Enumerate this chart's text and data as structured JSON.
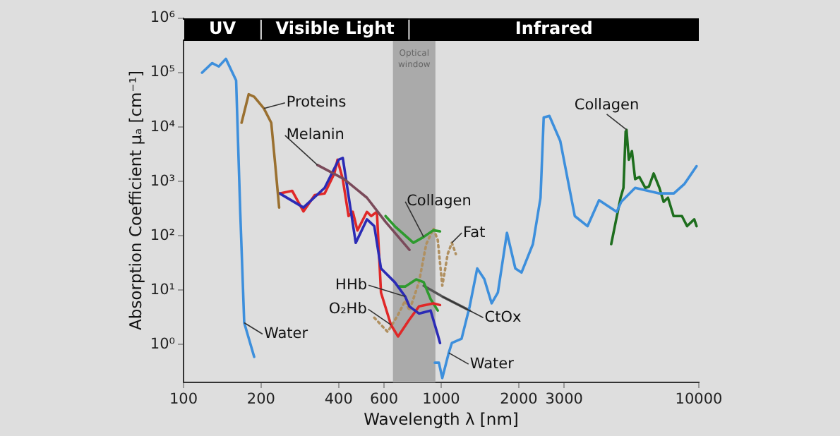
{
  "chart_data": {
    "type": "line",
    "xlabel": "Wavelength λ [nm]",
    "ylabel": "Absorption Coefficient μₐ [cm⁻¹]",
    "log": "xy",
    "xlim": [
      100,
      10000
    ],
    "xticks": [
      100,
      200,
      400,
      600,
      1000,
      2000,
      3000,
      10000
    ],
    "ylim": [
      0.2,
      1000000
    ],
    "yticks": [
      {
        "value": 1,
        "label": "10⁰"
      },
      {
        "value": 10,
        "label": "10¹"
      },
      {
        "value": 100,
        "label": "10²"
      },
      {
        "value": 1000,
        "label": "10³"
      },
      {
        "value": 10000,
        "label": "10⁴"
      },
      {
        "value": 100000,
        "label": "10⁵"
      },
      {
        "value": 1000000,
        "label": "10⁶"
      }
    ],
    "grid": false,
    "legend": false,
    "marker": "none",
    "series": [
      {
        "color": "#3d8fdc",
        "x": [
          118,
          129,
          137,
          146,
          160,
          166,
          172,
          188,
          205,
          600,
          933,
          945,
          980,
          1010,
          1070,
          1100,
          1200,
          1290,
          1380,
          1470,
          1570,
          1660,
          1800,
          1940,
          2050,
          2270,
          2430,
          2500,
          2630,
          2900,
          3300,
          3700,
          4100,
          4800,
          5000,
          5660,
          7030,
          8000,
          8800,
          9800
        ],
        "values": [
          100000,
          150000,
          130000,
          180000,
          72000,
          275,
          2.5,
          0.59,
          null,
          null,
          null,
          0.46,
          0.46,
          0.24,
          0.7,
          1.06,
          1.27,
          5,
          25,
          16,
          5.7,
          9,
          113,
          25,
          21,
          70,
          500,
          15000,
          16000,
          5500,
          230,
          150,
          450,
          275,
          420,
          760,
          600,
          600,
          900,
          1900
        ]
      },
      {
        "color": "#9a7030",
        "x": [
          168,
          179,
          188,
          205,
          219,
          227,
          235
        ],
        "values": [
          12000,
          40000,
          36000,
          22000,
          12000,
          2000,
          330
        ]
      },
      {
        "color": "#7a4a5a",
        "x": [
          331,
          420,
          515,
          608,
          753
        ],
        "values": [
          2000,
          1100,
          500,
          180,
          55
        ]
      },
      {
        "color": "#2b2bb5",
        "x": [
          236,
          292,
          353,
          400,
          415,
          466,
          515,
          550,
          584,
          660,
          725,
          753,
          820,
          910,
          970,
          990
        ],
        "values": [
          600,
          330,
          760,
          2500,
          2700,
          74,
          200,
          150,
          25,
          14,
          7.6,
          5,
          3.7,
          4.2,
          1.5,
          1.06
        ]
      },
      {
        "color": "#e02828",
        "x": [
          236,
          264,
          292,
          323,
          353,
          385,
          396,
          415,
          437,
          454,
          473,
          515,
          535,
          563,
          584,
          638,
          680,
          750,
          820,
          933,
          990
        ],
        "values": [
          600,
          670,
          280,
          560,
          600,
          1400,
          2500,
          1100,
          230,
          275,
          125,
          275,
          230,
          275,
          9,
          2.3,
          1.4,
          2.8,
          5,
          5.7,
          5.3
        ]
      },
      {
        "color": "#2e9a2e",
        "x": [
          608,
          660,
          780,
          855,
          933,
          990
        ],
        "values": [
          230,
          150,
          74,
          95,
          126,
          120
        ]
      },
      {
        "color": "#2e9a2e",
        "x": [
          680,
          725,
          800,
          855,
          910,
          970
        ],
        "values": [
          11.6,
          11.6,
          15.7,
          14,
          6.8,
          4.2
        ]
      },
      {
        "color": "#b09060",
        "line_style": "dotted",
        "x": [
          550,
          620,
          680,
          725,
          753,
          820,
          875,
          933,
          970,
          1010,
          1060,
          1100,
          1140
        ],
        "values": [
          3.1,
          1.7,
          3.5,
          6.4,
          4.2,
          14,
          70,
          135,
          83,
          12,
          46,
          74,
          46
        ]
      },
      {
        "color": "#555555",
        "x": [
          855,
          1010,
          1290
        ],
        "values": [
          12,
          7.6,
          4.2
        ]
      },
      {
        "color": "#1e6e1e",
        "x": [
          4570,
          4970,
          5100,
          5200,
          5240,
          5350,
          5500,
          5660,
          5880,
          6200,
          6400,
          6680,
          7030,
          7300,
          7590,
          7980,
          8600,
          9000,
          9600,
          9800
        ],
        "values": [
          70,
          500,
          760,
          8300,
          8900,
          2500,
          3600,
          1100,
          1200,
          760,
          800,
          1400,
          760,
          420,
          500,
          230,
          230,
          150,
          200,
          150
        ]
      }
    ],
    "bands": [
      {
        "axis": "x",
        "from": 100,
        "to": 200,
        "label": "UV",
        "color": "#000000"
      },
      {
        "axis": "x",
        "from": 200,
        "to": 750,
        "label": "Visible Light",
        "color": "#000000"
      },
      {
        "axis": "x",
        "from": 750,
        "to": 10000,
        "label": "Infrared",
        "color": "#000000"
      },
      {
        "axis": "x",
        "from": 650,
        "to": 950,
        "label": "Optical window",
        "color": "#aaaaaa"
      }
    ],
    "annotations": [
      {
        "text": "Proteins",
        "x": 205,
        "y": 22000
      },
      {
        "text": "Melanin",
        "x": 331,
        "y": 2000
      },
      {
        "text": "Collagen",
        "x": 855,
        "y": 95
      },
      {
        "text": "Fat",
        "x": 1100,
        "y": 74
      },
      {
        "text": "HHb",
        "x": 725,
        "y": 7.6
      },
      {
        "text": "O₂Hb",
        "x": 638,
        "y": 2.3
      },
      {
        "text": "CtOx",
        "x": 1010,
        "y": 7.6
      },
      {
        "text": "Water",
        "x": 172,
        "y": 2.5
      },
      {
        "text": "Water",
        "x": 1070,
        "y": 0.7
      },
      {
        "text": "Collagen",
        "x": 5240,
        "y": 8900
      }
    ]
  }
}
